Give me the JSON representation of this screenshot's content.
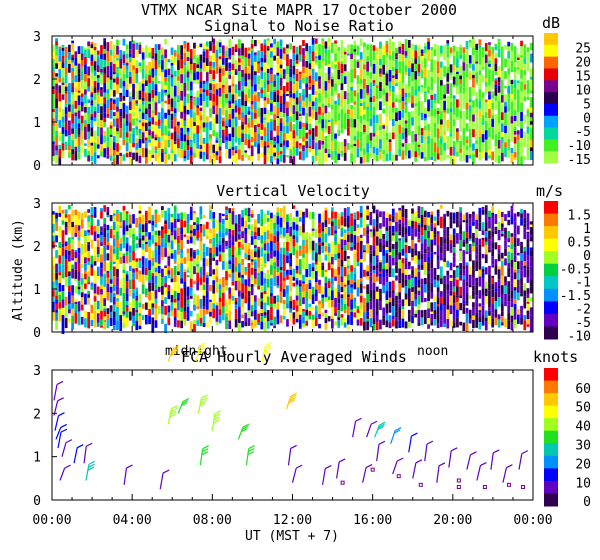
{
  "figure": {
    "title": "VTMX  NCAR Site  MAPR 17 October 2000",
    "ylabel": "Altitude (km)",
    "xlabel": "UT  (MST + 7)",
    "time_markers": [
      "midnight",
      "noon"
    ],
    "x_ticks": [
      "00:00",
      "04:00",
      "08:00",
      "12:00",
      "16:00",
      "20:00",
      "00:00"
    ]
  },
  "chart_data": [
    {
      "type": "heatmap",
      "title": "Signal to Noise Ratio",
      "unit": "dB",
      "ylim": [
        0,
        3
      ],
      "yticks": [
        0,
        1,
        2,
        3
      ],
      "colorbar": {
        "labels": [
          "25",
          "20",
          "15",
          "10",
          "5",
          "0",
          "-5",
          "-10",
          "-15"
        ],
        "colors": [
          "#ffc800",
          "#ffff00",
          "#ff6400",
          "#e80000",
          "#7a0090",
          "#2c0050",
          "#0000ff",
          "#00a0ff",
          "#00d8a0",
          "#40f020",
          "#a0ff40"
        ]
      }
    },
    {
      "type": "heatmap",
      "title": "Vertical Velocity",
      "unit": "m/s",
      "ylim": [
        0,
        3
      ],
      "yticks": [
        0,
        1,
        2,
        3
      ],
      "colorbar": {
        "labels": [
          "1.5",
          "1",
          "0.5",
          "0",
          "-0.5",
          "-1",
          "-1.5",
          "-2",
          "-5",
          "-10"
        ],
        "colors": [
          "#ff0000",
          "#ff7800",
          "#ffc800",
          "#ffff00",
          "#a0ff20",
          "#00d040",
          "#00c8c8",
          "#0090ff",
          "#0000ff",
          "#6000c0",
          "#300050"
        ]
      }
    },
    {
      "type": "scatter",
      "title": "FCA Hourly Averaged Winds",
      "unit": "knots",
      "ylim": [
        0,
        3
      ],
      "yticks": [
        0,
        1,
        2,
        3
      ],
      "colorbar": {
        "labels": [
          "60",
          "50",
          "40",
          "30",
          "20",
          "10",
          "0"
        ],
        "colors": [
          "#ff0000",
          "#ff7800",
          "#ffc800",
          "#ffff00",
          "#a0ff20",
          "#20e020",
          "#00c8b0",
          "#0090ff",
          "#0000ff",
          "#6000c0",
          "#300050"
        ]
      },
      "barbs": [
        {
          "t": 0.1,
          "alt": 2.3,
          "speed": 5
        },
        {
          "t": 0.1,
          "alt": 1.95,
          "speed": 5
        },
        {
          "t": 0.15,
          "alt": 1.6,
          "speed": 10
        },
        {
          "t": 0.2,
          "alt": 1.4,
          "speed": 10
        },
        {
          "t": 0.3,
          "alt": 1.2,
          "speed": 10
        },
        {
          "t": 0.5,
          "alt": 1.0,
          "speed": 5
        },
        {
          "t": 0.4,
          "alt": 0.45,
          "speed": 5
        },
        {
          "t": 1.1,
          "alt": 0.85,
          "speed": 10
        },
        {
          "t": 1.6,
          "alt": 0.85,
          "speed": 5
        },
        {
          "t": 1.7,
          "alt": 0.45,
          "speed": 25
        },
        {
          "t": 3.6,
          "alt": 0.35,
          "speed": 5
        },
        {
          "t": 5.4,
          "alt": 0.25,
          "speed": 5
        },
        {
          "t": 5.8,
          "alt": 3.2,
          "speed": 45
        },
        {
          "t": 5.8,
          "alt": 1.75,
          "speed": 35
        },
        {
          "t": 6.3,
          "alt": 2.0,
          "speed": 30
        },
        {
          "t": 7.2,
          "alt": 3.2,
          "speed": 40
        },
        {
          "t": 7.3,
          "alt": 2.0,
          "speed": 35
        },
        {
          "t": 7.4,
          "alt": 0.8,
          "speed": 30
        },
        {
          "t": 8.0,
          "alt": 1.6,
          "speed": 35
        },
        {
          "t": 9.3,
          "alt": 1.4,
          "speed": 30
        },
        {
          "t": 9.7,
          "alt": 0.8,
          "speed": 30
        },
        {
          "t": 10.5,
          "alt": 3.2,
          "speed": 40
        },
        {
          "t": 11.7,
          "alt": 2.1,
          "speed": 45
        },
        {
          "t": 11.8,
          "alt": 0.8,
          "speed": 5
        },
        {
          "t": 12.0,
          "alt": 0.4,
          "speed": 5
        },
        {
          "t": 13.5,
          "alt": 0.35,
          "speed": 5
        },
        {
          "t": 14.2,
          "alt": 0.5,
          "speed": 5
        },
        {
          "t": 15.0,
          "alt": 1.45,
          "speed": 5
        },
        {
          "t": 15.5,
          "alt": 0.4,
          "speed": 5
        },
        {
          "t": 15.7,
          "alt": 1.45,
          "speed": 5
        },
        {
          "t": 16.1,
          "alt": 1.45,
          "speed": 25
        },
        {
          "t": 16.2,
          "alt": 0.9,
          "speed": 5
        },
        {
          "t": 16.9,
          "alt": 1.3,
          "speed": 20
        },
        {
          "t": 17.0,
          "alt": 0.6,
          "speed": 5
        },
        {
          "t": 17.8,
          "alt": 1.1,
          "speed": 10
        },
        {
          "t": 18.0,
          "alt": 0.5,
          "speed": 5
        },
        {
          "t": 18.6,
          "alt": 0.9,
          "speed": 5
        },
        {
          "t": 19.2,
          "alt": 0.4,
          "speed": 5
        },
        {
          "t": 19.8,
          "alt": 0.75,
          "speed": 5
        },
        {
          "t": 20.7,
          "alt": 0.7,
          "speed": 5
        },
        {
          "t": 21.2,
          "alt": 0.45,
          "speed": 5
        },
        {
          "t": 21.9,
          "alt": 0.7,
          "speed": 5
        },
        {
          "t": 22.5,
          "alt": 0.4,
          "speed": 5
        },
        {
          "t": 23.3,
          "alt": 0.7,
          "speed": 5
        }
      ],
      "squares": [
        {
          "t": 14.5,
          "alt": 0.4
        },
        {
          "t": 16.0,
          "alt": 0.7
        },
        {
          "t": 17.3,
          "alt": 0.55
        },
        {
          "t": 18.4,
          "alt": 0.35
        },
        {
          "t": 20.3,
          "alt": 0.3
        },
        {
          "t": 20.3,
          "alt": 0.45
        },
        {
          "t": 21.6,
          "alt": 0.3
        },
        {
          "t": 22.8,
          "alt": 0.35
        },
        {
          "t": 23.5,
          "alt": 0.3
        }
      ]
    }
  ]
}
